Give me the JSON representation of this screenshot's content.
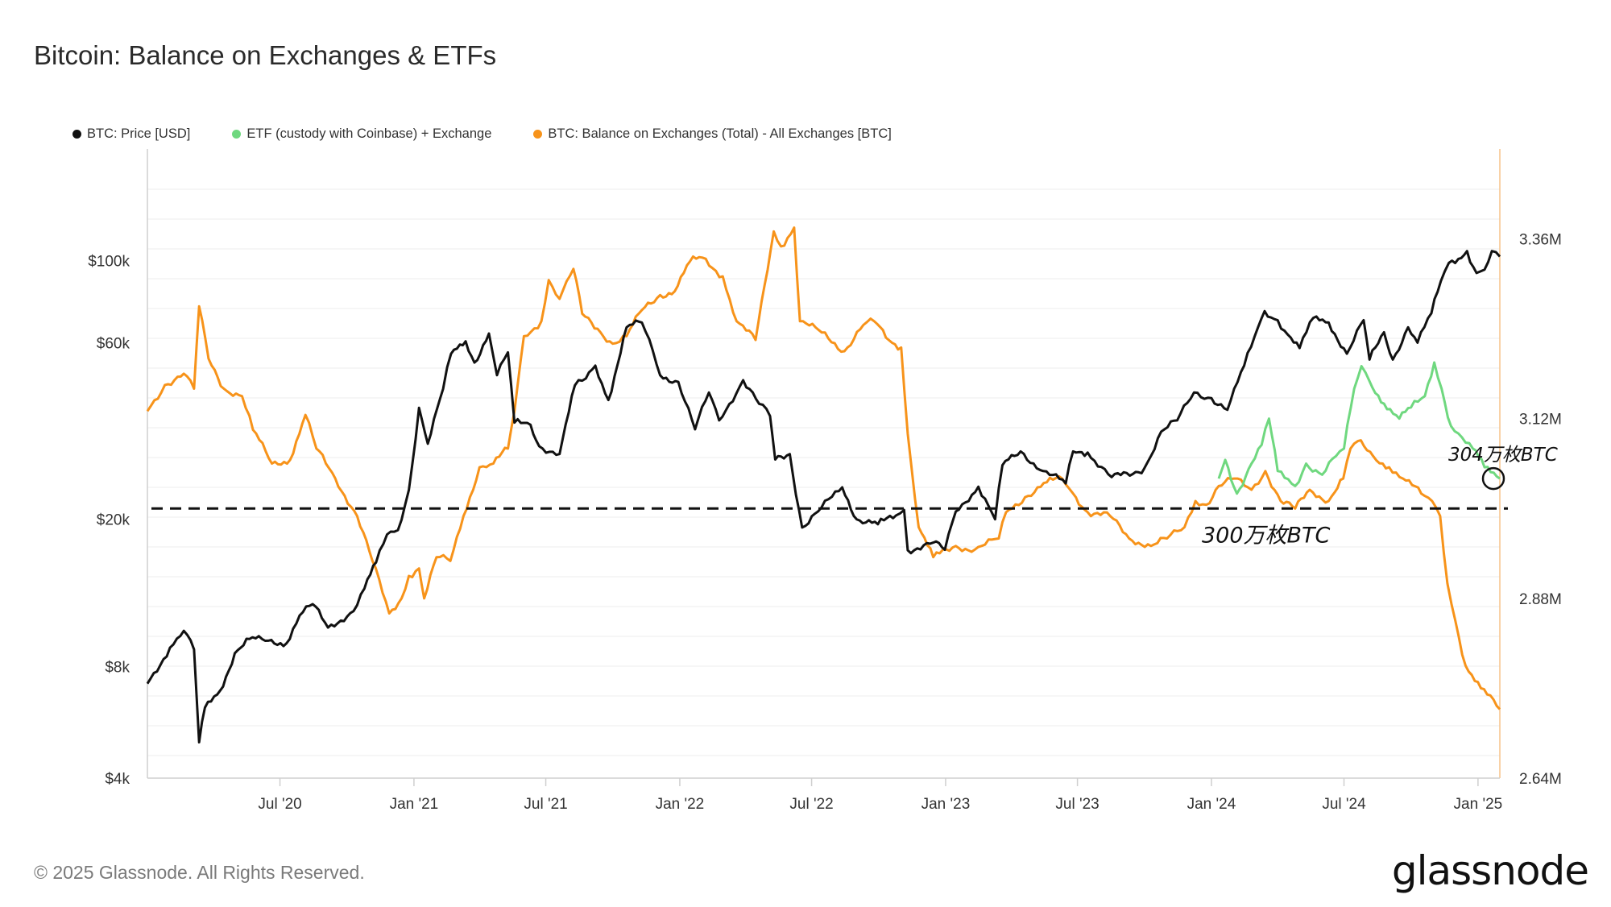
{
  "title": "Bitcoin: Balance on Exchanges & ETFs",
  "legend": [
    {
      "label": "BTC: Price [USD]",
      "color": "#111111"
    },
    {
      "label": "ETF (custody with Coinbase) + Exchange",
      "color": "#6fd87f"
    },
    {
      "label": "BTC: Balance on Exchanges (Total) - All Exchanges [BTC]",
      "color": "#f7931a"
    }
  ],
  "footer": "© 2025 Glassnode. All Rights Reserved.",
  "brand": "glassnode",
  "chart_data": {
    "type": "line",
    "title": "Bitcoin: Balance on Exchanges & ETFs",
    "x_range": [
      "2020-01-01",
      "2025-01-31"
    ],
    "x_ticks": [
      {
        "date": "2020-07-01",
        "label": "Jul '20"
      },
      {
        "date": "2021-01-01",
        "label": "Jan '21"
      },
      {
        "date": "2021-07-01",
        "label": "Jul '21"
      },
      {
        "date": "2022-01-01",
        "label": "Jan '22"
      },
      {
        "date": "2022-07-01",
        "label": "Jul '22"
      },
      {
        "date": "2023-01-01",
        "label": "Jan '23"
      },
      {
        "date": "2023-07-01",
        "label": "Jul '23"
      },
      {
        "date": "2024-01-01",
        "label": "Jan '24"
      },
      {
        "date": "2024-07-01",
        "label": "Jul '24"
      },
      {
        "date": "2025-01-01",
        "label": "Jan '25"
      }
    ],
    "y_left": {
      "scale": "log",
      "unit": "USD",
      "range": [
        4000,
        200000
      ],
      "ticks": [
        {
          "value": 4000,
          "label": "$4k"
        },
        {
          "value": 8000,
          "label": "$8k"
        },
        {
          "value": 20000,
          "label": "$20k"
        },
        {
          "value": 60000,
          "label": "$60k"
        },
        {
          "value": 100000,
          "label": "$100k"
        }
      ]
    },
    "y_right": {
      "scale": "linear",
      "unit": "BTC",
      "range": [
        2640000,
        3480000
      ],
      "ticks": [
        {
          "value": 2640000,
          "label": "2.64M"
        },
        {
          "value": 2880000,
          "label": "2.88M"
        },
        {
          "value": 3120000,
          "label": "3.12M"
        },
        {
          "value": 3360000,
          "label": "3.36M"
        }
      ]
    },
    "reference_line": {
      "value": 3000000,
      "axis": "right",
      "style": "dashed",
      "label": "300万枚BTC"
    },
    "annotation": {
      "label": "304万枚BTC",
      "date": "2025-01-31",
      "value": 3040000,
      "marker": "circle"
    },
    "series": [
      {
        "name": "BTC: Price [USD]",
        "axis": "left",
        "color": "#111111",
        "points": [
          [
            "2020-01-01",
            7200
          ],
          [
            "2020-02-01",
            9000
          ],
          [
            "2020-02-20",
            10000
          ],
          [
            "2020-03-05",
            8900
          ],
          [
            "2020-03-12",
            5000
          ],
          [
            "2020-03-20",
            6200
          ],
          [
            "2020-04-10",
            6900
          ],
          [
            "2020-04-30",
            8700
          ],
          [
            "2020-05-20",
            9500
          ],
          [
            "2020-06-15",
            9400
          ],
          [
            "2020-07-10",
            9250
          ],
          [
            "2020-07-28",
            11000
          ],
          [
            "2020-08-15",
            11800
          ],
          [
            "2020-09-05",
            10200
          ],
          [
            "2020-10-10",
            11300
          ],
          [
            "2020-10-25",
            13000
          ],
          [
            "2020-11-10",
            15300
          ],
          [
            "2020-11-25",
            18200
          ],
          [
            "2020-12-10",
            18700
          ],
          [
            "2020-12-25",
            24000
          ],
          [
            "2021-01-08",
            40000
          ],
          [
            "2021-01-20",
            32000
          ],
          [
            "2021-02-10",
            45000
          ],
          [
            "2021-02-21",
            56000
          ],
          [
            "2021-03-13",
            60500
          ],
          [
            "2021-03-25",
            53000
          ],
          [
            "2021-04-14",
            63500
          ],
          [
            "2021-04-25",
            49000
          ],
          [
            "2021-05-10",
            56500
          ],
          [
            "2021-05-19",
            36500
          ],
          [
            "2021-06-10",
            36000
          ],
          [
            "2021-06-22",
            31500
          ],
          [
            "2021-07-20",
            30000
          ],
          [
            "2021-08-10",
            46000
          ],
          [
            "2021-08-25",
            48000
          ],
          [
            "2021-09-07",
            52000
          ],
          [
            "2021-09-25",
            42000
          ],
          [
            "2021-10-20",
            66000
          ],
          [
            "2021-11-10",
            68000
          ],
          [
            "2021-11-25",
            57000
          ],
          [
            "2021-12-05",
            49000
          ],
          [
            "2021-12-30",
            47000
          ],
          [
            "2022-01-22",
            35000
          ],
          [
            "2022-02-10",
            44000
          ],
          [
            "2022-02-24",
            37000
          ],
          [
            "2022-03-29",
            47500
          ],
          [
            "2022-04-20",
            41000
          ],
          [
            "2022-05-05",
            38000
          ],
          [
            "2022-05-12",
            29000
          ],
          [
            "2022-06-01",
            30000
          ],
          [
            "2022-06-18",
            19000
          ],
          [
            "2022-07-10",
            21000
          ],
          [
            "2022-08-12",
            24400
          ],
          [
            "2022-09-01",
            20000
          ],
          [
            "2022-09-30",
            19400
          ],
          [
            "2022-10-25",
            20500
          ],
          [
            "2022-11-05",
            21200
          ],
          [
            "2022-11-10",
            16500
          ],
          [
            "2022-12-15",
            17300
          ],
          [
            "2022-12-31",
            16550
          ],
          [
            "2023-01-15",
            21000
          ],
          [
            "2023-02-15",
            24500
          ],
          [
            "2023-03-10",
            20000
          ],
          [
            "2023-03-20",
            28000
          ],
          [
            "2023-04-14",
            30500
          ],
          [
            "2023-05-15",
            27000
          ],
          [
            "2023-06-15",
            25000
          ],
          [
            "2023-06-25",
            30500
          ],
          [
            "2023-07-15",
            30300
          ],
          [
            "2023-08-17",
            26000
          ],
          [
            "2023-09-15",
            26500
          ],
          [
            "2023-10-01",
            27500
          ],
          [
            "2023-10-24",
            34500
          ],
          [
            "2023-11-15",
            37000
          ],
          [
            "2023-12-08",
            44000
          ],
          [
            "2024-01-01",
            42500
          ],
          [
            "2024-01-23",
            39500
          ],
          [
            "2024-02-15",
            52000
          ],
          [
            "2024-03-05",
            66000
          ],
          [
            "2024-03-14",
            73000
          ],
          [
            "2024-04-01",
            69000
          ],
          [
            "2024-04-15",
            63000
          ],
          [
            "2024-05-01",
            58000
          ],
          [
            "2024-05-20",
            70000
          ],
          [
            "2024-06-10",
            68000
          ],
          [
            "2024-07-05",
            56000
          ],
          [
            "2024-07-28",
            69000
          ],
          [
            "2024-08-05",
            54000
          ],
          [
            "2024-08-25",
            64000
          ],
          [
            "2024-09-06",
            54000
          ],
          [
            "2024-09-27",
            66000
          ],
          [
            "2024-10-10",
            60000
          ],
          [
            "2024-10-29",
            72000
          ],
          [
            "2024-11-11",
            88000
          ],
          [
            "2024-11-22",
            98500
          ],
          [
            "2024-12-05",
            101000
          ],
          [
            "2024-12-17",
            106000
          ],
          [
            "2024-12-30",
            92500
          ],
          [
            "2025-01-10",
            94500
          ],
          [
            "2025-01-20",
            106000
          ],
          [
            "2025-01-31",
            102500
          ]
        ]
      },
      {
        "name": "ETF (custody with Coinbase) + Exchange",
        "axis": "right",
        "color": "#6fd87f",
        "points": [
          [
            "2024-01-11",
            3040000
          ],
          [
            "2024-01-20",
            3065000
          ],
          [
            "2024-02-05",
            3020000
          ],
          [
            "2024-02-25",
            3060000
          ],
          [
            "2024-03-10",
            3085000
          ],
          [
            "2024-03-20",
            3120000
          ],
          [
            "2024-04-01",
            3050000
          ],
          [
            "2024-04-25",
            3030000
          ],
          [
            "2024-05-10",
            3060000
          ],
          [
            "2024-06-01",
            3045000
          ],
          [
            "2024-06-20",
            3070000
          ],
          [
            "2024-07-01",
            3080000
          ],
          [
            "2024-07-15",
            3160000
          ],
          [
            "2024-07-25",
            3190000
          ],
          [
            "2024-08-05",
            3170000
          ],
          [
            "2024-08-25",
            3140000
          ],
          [
            "2024-09-15",
            3120000
          ],
          [
            "2024-10-01",
            3135000
          ],
          [
            "2024-10-20",
            3150000
          ],
          [
            "2024-11-02",
            3195000
          ],
          [
            "2024-11-12",
            3160000
          ],
          [
            "2024-11-25",
            3110000
          ],
          [
            "2024-12-10",
            3095000
          ],
          [
            "2024-12-25",
            3080000
          ],
          [
            "2025-01-10",
            3055000
          ],
          [
            "2025-01-31",
            3040000
          ]
        ]
      },
      {
        "name": "BTC: Balance on Exchanges (Total) - All Exchanges [BTC]",
        "axis": "right",
        "color": "#f7931a",
        "points": [
          [
            "2020-01-01",
            3130000
          ],
          [
            "2020-01-25",
            3165000
          ],
          [
            "2020-02-20",
            3180000
          ],
          [
            "2020-03-05",
            3160000
          ],
          [
            "2020-03-12",
            3270000
          ],
          [
            "2020-03-25",
            3200000
          ],
          [
            "2020-04-15",
            3160000
          ],
          [
            "2020-05-10",
            3150000
          ],
          [
            "2020-05-25",
            3105000
          ],
          [
            "2020-06-20",
            3060000
          ],
          [
            "2020-07-15",
            3065000
          ],
          [
            "2020-08-05",
            3125000
          ],
          [
            "2020-08-20",
            3080000
          ],
          [
            "2020-09-15",
            3040000
          ],
          [
            "2020-10-15",
            2990000
          ],
          [
            "2020-11-05",
            2930000
          ],
          [
            "2020-11-28",
            2860000
          ],
          [
            "2020-12-15",
            2880000
          ],
          [
            "2020-12-25",
            2910000
          ],
          [
            "2021-01-08",
            2920000
          ],
          [
            "2021-01-15",
            2880000
          ],
          [
            "2021-02-01",
            2935000
          ],
          [
            "2021-02-20",
            2930000
          ],
          [
            "2021-03-10",
            2990000
          ],
          [
            "2021-04-01",
            3055000
          ],
          [
            "2021-04-20",
            3060000
          ],
          [
            "2021-05-10",
            3080000
          ],
          [
            "2021-05-19",
            3130000
          ],
          [
            "2021-06-01",
            3230000
          ],
          [
            "2021-06-25",
            3250000
          ],
          [
            "2021-07-05",
            3305000
          ],
          [
            "2021-07-20",
            3280000
          ],
          [
            "2021-08-08",
            3320000
          ],
          [
            "2021-08-20",
            3260000
          ],
          [
            "2021-09-10",
            3240000
          ],
          [
            "2021-10-01",
            3220000
          ],
          [
            "2021-10-20",
            3230000
          ],
          [
            "2021-11-10",
            3265000
          ],
          [
            "2021-12-05",
            3285000
          ],
          [
            "2021-12-25",
            3290000
          ],
          [
            "2022-01-15",
            3330000
          ],
          [
            "2022-02-01",
            3335000
          ],
          [
            "2022-03-01",
            3310000
          ],
          [
            "2022-03-20",
            3250000
          ],
          [
            "2022-04-15",
            3225000
          ],
          [
            "2022-05-10",
            3370000
          ],
          [
            "2022-05-20",
            3350000
          ],
          [
            "2022-06-07",
            3375000
          ],
          [
            "2022-06-15",
            3250000
          ],
          [
            "2022-07-15",
            3235000
          ],
          [
            "2022-08-15",
            3210000
          ],
          [
            "2022-09-10",
            3245000
          ],
          [
            "2022-09-25",
            3250000
          ],
          [
            "2022-10-15",
            3225000
          ],
          [
            "2022-11-01",
            3215000
          ],
          [
            "2022-11-10",
            3100000
          ],
          [
            "2022-11-25",
            2975000
          ],
          [
            "2022-12-15",
            2935000
          ],
          [
            "2023-01-15",
            2950000
          ],
          [
            "2023-02-10",
            2945000
          ],
          [
            "2023-03-15",
            2960000
          ],
          [
            "2023-03-25",
            2995000
          ],
          [
            "2023-04-20",
            3015000
          ],
          [
            "2023-05-20",
            3035000
          ],
          [
            "2023-06-10",
            3040000
          ],
          [
            "2023-06-25",
            3020000
          ],
          [
            "2023-07-15",
            2995000
          ],
          [
            "2023-08-15",
            2990000
          ],
          [
            "2023-09-10",
            2960000
          ],
          [
            "2023-10-10",
            2950000
          ],
          [
            "2023-11-01",
            2960000
          ],
          [
            "2023-11-25",
            2975000
          ],
          [
            "2023-12-10",
            3010000
          ],
          [
            "2023-12-25",
            3005000
          ],
          [
            "2024-01-11",
            3030000
          ],
          [
            "2024-02-01",
            3040000
          ],
          [
            "2024-02-25",
            3025000
          ],
          [
            "2024-03-15",
            3050000
          ],
          [
            "2024-04-05",
            3010000
          ],
          [
            "2024-04-25",
            3000000
          ],
          [
            "2024-05-15",
            3025000
          ],
          [
            "2024-06-10",
            3010000
          ],
          [
            "2024-06-30",
            3040000
          ],
          [
            "2024-07-10",
            3080000
          ],
          [
            "2024-07-20",
            3090000
          ],
          [
            "2024-08-10",
            3070000
          ],
          [
            "2024-09-01",
            3055000
          ],
          [
            "2024-09-20",
            3040000
          ],
          [
            "2024-10-15",
            3020000
          ],
          [
            "2024-10-30",
            3010000
          ],
          [
            "2024-11-10",
            2990000
          ],
          [
            "2024-11-20",
            2900000
          ],
          [
            "2024-12-01",
            2850000
          ],
          [
            "2024-12-15",
            2790000
          ],
          [
            "2025-01-05",
            2760000
          ],
          [
            "2025-01-31",
            2732000
          ]
        ]
      }
    ]
  }
}
